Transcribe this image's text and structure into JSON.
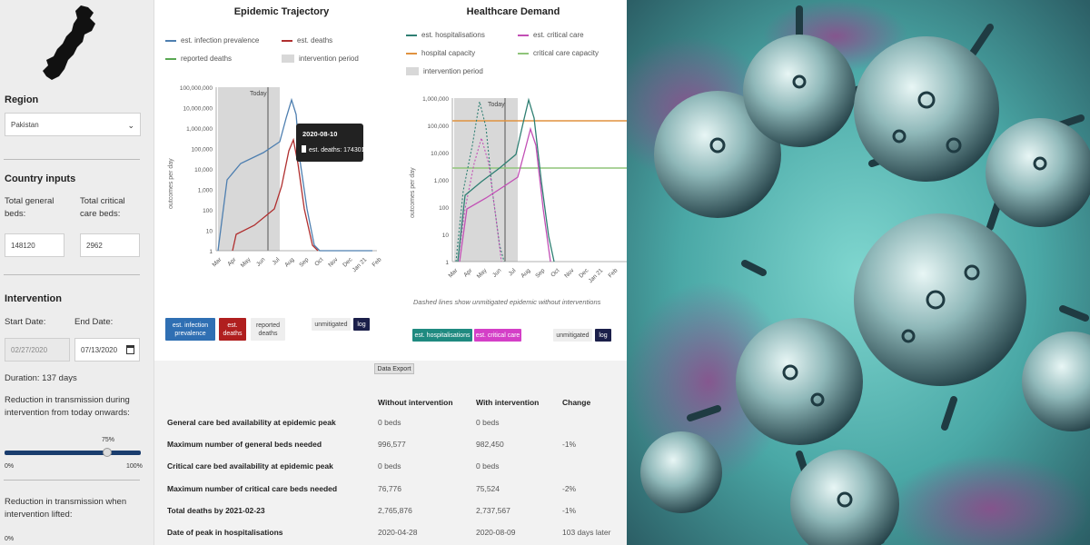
{
  "sidebar": {
    "region_label": "Region",
    "region_value": "Pakistan",
    "country_inputs_label": "Country inputs",
    "general_beds_label": "Total general beds:",
    "general_beds_value": "148120",
    "critical_beds_label": "Total critical care beds:",
    "critical_beds_value": "2962",
    "intervention_label": "Intervention",
    "start_date_label": "Start Date:",
    "start_date_value": "02/27/2020",
    "end_date_label": "End Date:",
    "end_date_value": "07/13/2020",
    "duration": "Duration: 137 days",
    "reduction_label": "Reduction in transmission during intervention from today onwards:",
    "slider_value_label": "75%",
    "slider_value": 0.75,
    "slider_min": "0%",
    "slider_max": "100%",
    "reduction_lifted_label": "Reduction in transmission when intervention lifted:",
    "reduction_lifted_value": "0%"
  },
  "charts": [
    {
      "title": "Epidemic Trajectory",
      "legend": [
        {
          "label": "est. infection prevalence",
          "color": "#4e7fb0",
          "kind": "line"
        },
        {
          "label": "est. deaths",
          "color": "#b02f2f",
          "kind": "line"
        },
        {
          "label": "reported deaths",
          "color": "#5aa853",
          "kind": "line"
        },
        {
          "label": "intervention period",
          "color": "#d8d8d8",
          "kind": "box"
        }
      ],
      "ylabel": "outcomes per day",
      "y_ticks": [
        "100,000,000",
        "10,000,000",
        "1,000,000",
        "100,000",
        "10,000",
        "1,000",
        "100",
        "10",
        "1"
      ],
      "x_ticks": [
        "Mar",
        "Apr",
        "May",
        "Jun",
        "Jul",
        "Aug",
        "Sep",
        "Oct",
        "Nov",
        "Dec",
        "Jan 21",
        "Feb"
      ],
      "today_label": "Today",
      "tooltip_date": "2020-08-10",
      "tooltip_value": "est. deaths: 174301",
      "toggles": [
        {
          "label": "est. infection prevalence",
          "color": "#2f6fb3"
        },
        {
          "label": "est. deaths",
          "color": "#b01f1f"
        },
        {
          "label": "reported deaths",
          "color": ""
        }
      ],
      "unmitigated": "unmitigated",
      "log": "log"
    },
    {
      "title": "Healthcare Demand",
      "legend": [
        {
          "label": "est. hospitalisations",
          "color": "#2f7f73",
          "kind": "line"
        },
        {
          "label": "est. critical care",
          "color": "#c24fb5",
          "kind": "line"
        },
        {
          "label": "hospital capacity",
          "color": "#e0923f",
          "kind": "line"
        },
        {
          "label": "critical care capacity",
          "color": "#8fc47a",
          "kind": "line"
        },
        {
          "label": "intervention period",
          "color": "#d8d8d8",
          "kind": "box"
        }
      ],
      "ylabel": "outcomes per day",
      "y_ticks": [
        "1,000,000",
        "100,000",
        "10,000",
        "1,000",
        "100",
        "10",
        "1"
      ],
      "x_ticks": [
        "Mar",
        "Apr",
        "May",
        "Jun",
        "Jul",
        "Aug",
        "Sep",
        "Oct",
        "Nov",
        "Dec",
        "Jan 21",
        "Feb"
      ],
      "today_label": "Today",
      "note": "Dashed lines show unmitigated epidemic without interventions",
      "toggles": [
        {
          "label": "est. hospitalisations",
          "color": "#1f8a80"
        },
        {
          "label": "est. critical care",
          "color": "#d43fc7"
        }
      ],
      "unmitigated": "unmitigated",
      "log": "log"
    }
  ],
  "export": {
    "button": "Data Export",
    "headers": [
      "",
      "Without intervention",
      "With intervention",
      "Change"
    ],
    "rows": [
      [
        "General care bed availability at epidemic peak",
        "0 beds",
        "0 beds",
        ""
      ],
      [
        "Maximum number of general beds needed",
        "996,577",
        "982,450",
        "-1%"
      ],
      [
        "Critical care bed availability at epidemic peak",
        "0 beds",
        "0 beds",
        ""
      ],
      [
        "Maximum number of critical care beds needed",
        "76,776",
        "75,524",
        "-2%"
      ],
      [
        "Total deaths by 2021-02-23",
        "2,765,876",
        "2,737,567",
        "-1%"
      ],
      [
        "Date of peak in hospitalisations",
        "2020-04-28",
        "2020-08-09",
        "103 days later"
      ]
    ]
  }
}
